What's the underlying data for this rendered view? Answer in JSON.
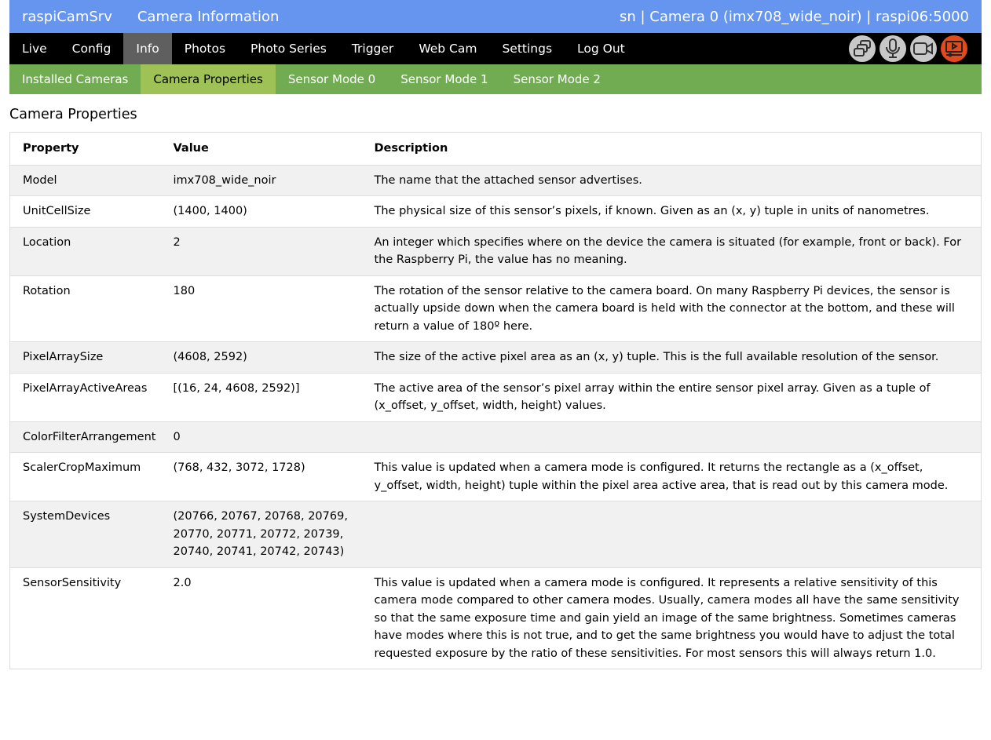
{
  "header": {
    "app": "raspiCamSrv",
    "title": "Camera Information",
    "status": "sn | Camera 0 (imx708_wide_noir) | raspi06:5000"
  },
  "nav": {
    "items": [
      "Live",
      "Config",
      "Info",
      "Photos",
      "Photo Series",
      "Trigger",
      "Web Cam",
      "Settings",
      "Log Out"
    ],
    "active": "Info",
    "icons": [
      "multi-window-icon",
      "microphone-icon",
      "video-camera-icon",
      "streaming-icon"
    ]
  },
  "subnav": {
    "items": [
      "Installed Cameras",
      "Camera Properties",
      "Sensor Mode 0",
      "Sensor Mode 1",
      "Sensor Mode 2"
    ],
    "active": "Camera Properties"
  },
  "colors": {
    "header": "#6595ee",
    "nav": "#000000",
    "nav_active": "#5f5f5f",
    "subnav": "#72ac52",
    "subnav_active": "#9fc256",
    "stream_icon": "#e2491d"
  },
  "main": {
    "title": "Camera Properties",
    "columns": [
      "Property",
      "Value",
      "Description"
    ],
    "rows": [
      [
        "Model",
        "imx708_wide_noir",
        "The name that the attached sensor advertises."
      ],
      [
        "UnitCellSize",
        "(1400, 1400)",
        "The physical size of this sensor’s pixels, if known. Given as an (x, y) tuple in units of nanometres."
      ],
      [
        "Location",
        "2",
        "An integer which specifies where on the device the camera is situated (for example, front or back). For the Raspberry Pi, the value has no meaning."
      ],
      [
        "Rotation",
        "180",
        "The rotation of the sensor relative to the camera board. On many Raspberry Pi devices, the sensor is actually upside down when the camera board is held with the connector at the bottom, and these will return a value of 180º here."
      ],
      [
        "PixelArraySize",
        "(4608, 2592)",
        "The size of the active pixel area as an (x, y) tuple. This is the full available resolution of the sensor."
      ],
      [
        "PixelArrayActiveAreas",
        "[(16, 24, 4608, 2592)]",
        "The active area of the sensor’s pixel array within the entire sensor pixel array. Given as a tuple of (x_offset, y_offset, width, height) values."
      ],
      [
        "ColorFilterArrangement",
        "0",
        ""
      ],
      [
        "ScalerCropMaximum",
        "(768, 432, 3072, 1728)",
        "This value is updated when a camera mode is configured. It returns the rectangle as a (x_offset, y_offset, width, height) tuple within the pixel area active area, that is read out by this camera mode."
      ],
      [
        "SystemDevices",
        "(20766, 20767, 20768, 20769, 20770, 20771, 20772, 20739, 20740, 20741, 20742, 20743)",
        ""
      ],
      [
        "SensorSensitivity",
        "2.0",
        "This value is updated when a camera mode is configured. It represents a relative sensitivity of this camera mode compared to other camera modes. Usually, camera modes all have the same sensitivity so that the same exposure time and gain yield an image of the same brightness. Sometimes cameras have modes where this is not true, and to get the same brightness you would have to adjust the total requested exposure by the ratio of these sensitivities. For most sensors this will always return 1.0."
      ]
    ]
  }
}
